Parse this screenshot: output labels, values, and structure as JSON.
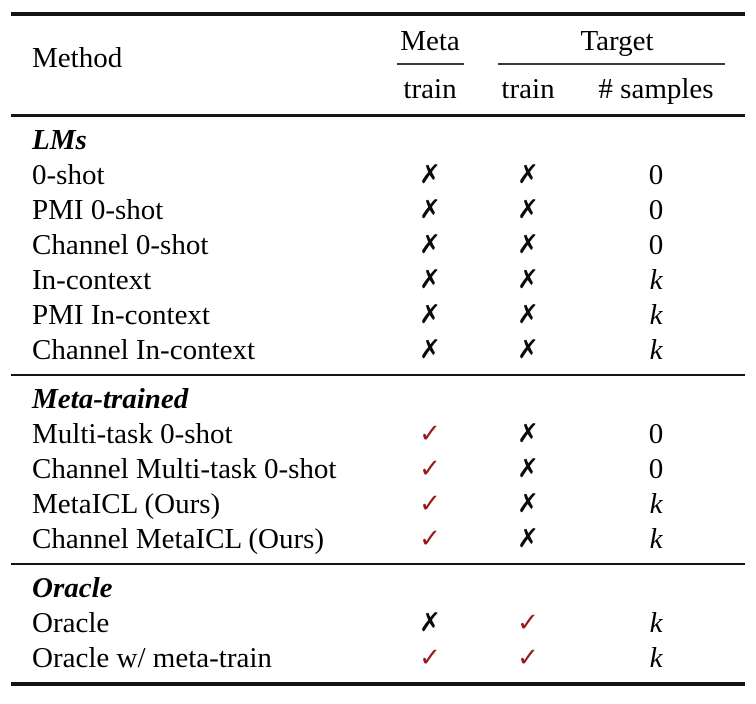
{
  "page": {
    "background": "#ffffff"
  },
  "table": {
    "glyphs": {
      "check": "✓",
      "cross": "✗",
      "k_symbol": "k"
    },
    "colors": {
      "check": "#971b1b",
      "cross": "#0a0a0a",
      "rule": "#151515"
    },
    "header": {
      "method": "Method",
      "meta_group": "Meta",
      "target_group": "Target",
      "meta_sub": "train",
      "target_sub_train": "train",
      "target_sub_samples": "# samples"
    },
    "sections": [
      {
        "title": "LMs",
        "rows": [
          {
            "method": "0-shot",
            "meta_train": "✗",
            "target_train": "✗",
            "samples": "0"
          },
          {
            "method": "PMI 0-shot",
            "meta_train": "✗",
            "target_train": "✗",
            "samples": "0"
          },
          {
            "method": "Channel 0-shot",
            "meta_train": "✗",
            "target_train": "✗",
            "samples": "0"
          },
          {
            "method": "In-context",
            "meta_train": "✗",
            "target_train": "✗",
            "samples": "k"
          },
          {
            "method": "PMI In-context",
            "meta_train": "✗",
            "target_train": "✗",
            "samples": "k"
          },
          {
            "method": "Channel In-context",
            "meta_train": "✗",
            "target_train": "✗",
            "samples": "k"
          }
        ]
      },
      {
        "title": "Meta-trained",
        "rows": [
          {
            "method": "Multi-task 0-shot",
            "meta_train": "✓",
            "target_train": "✗",
            "samples": "0"
          },
          {
            "method": "Channel Multi-task 0-shot",
            "meta_train": "✓",
            "target_train": "✗",
            "samples": "0"
          },
          {
            "method": "MetaICL (Ours)",
            "meta_train": "✓",
            "target_train": "✗",
            "samples": "k"
          },
          {
            "method": "Channel MetaICL (Ours)",
            "meta_train": "✓",
            "target_train": "✗",
            "samples": "k"
          }
        ]
      },
      {
        "title": "Oracle",
        "rows": [
          {
            "method": "Oracle",
            "meta_train": "✗",
            "target_train": "✓",
            "samples": "k"
          },
          {
            "method": "Oracle w/ meta-train",
            "meta_train": "✓",
            "target_train": "✓",
            "samples": "k"
          }
        ]
      }
    ]
  }
}
